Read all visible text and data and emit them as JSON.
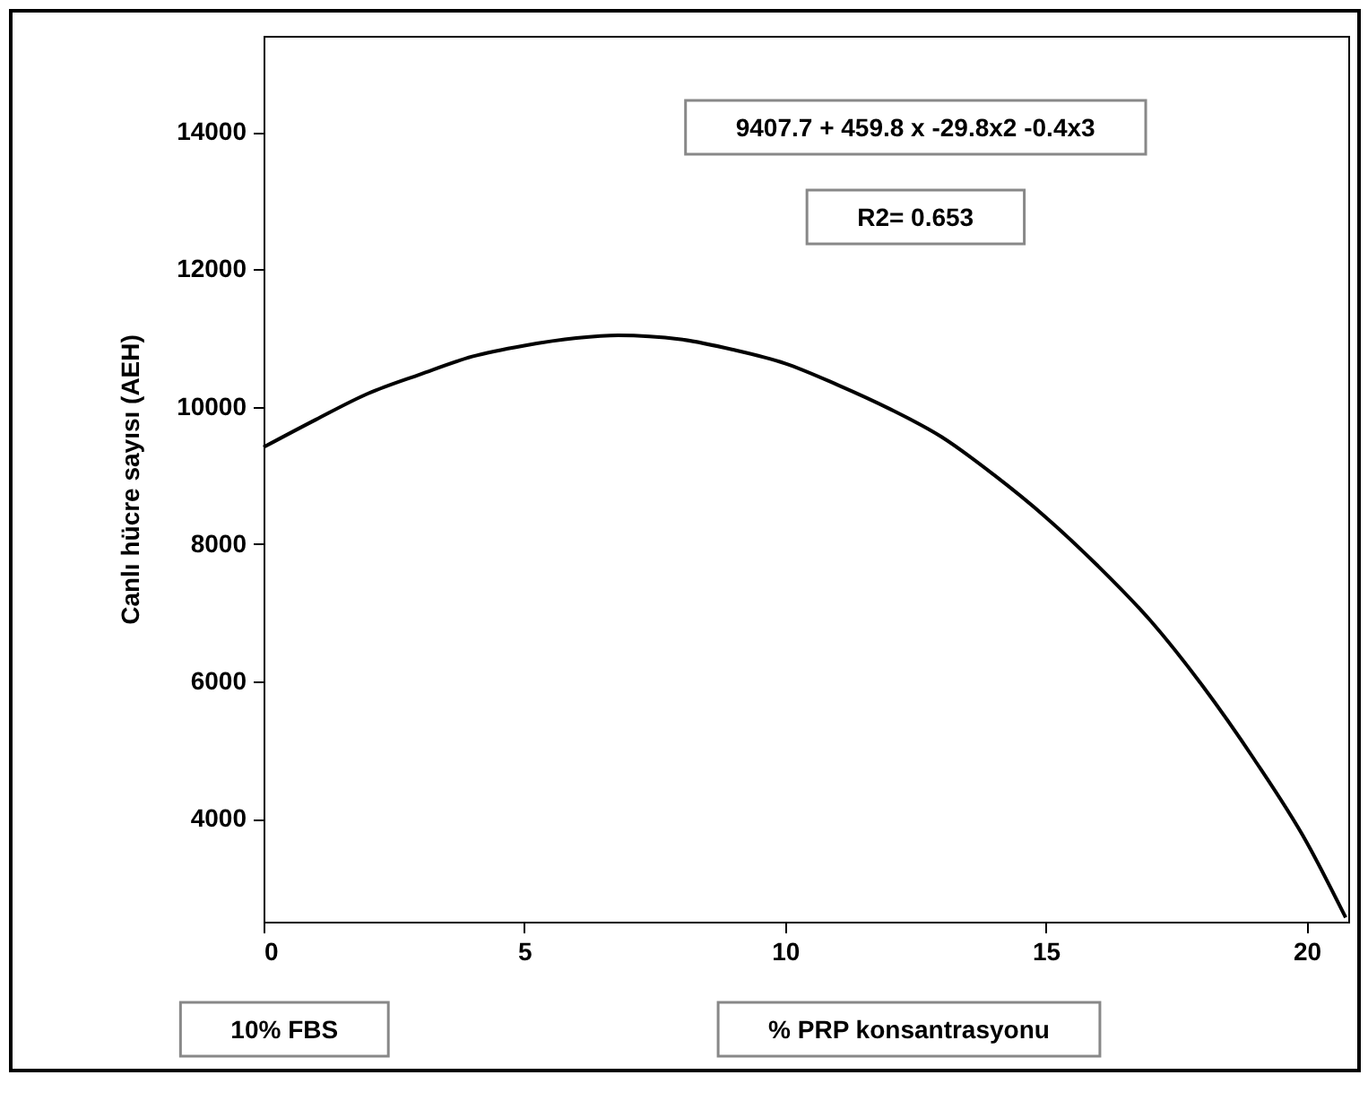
{
  "chart_data": {
    "type": "line",
    "xlabel": "% PRP konsantrasyonu",
    "ylabel": "Canlı hücre sayısı (AEH)",
    "annotations": [
      "9407.7 + 459.8 x -29.8x2 -0.4x3",
      "R2= 0.653",
      "10% FBS"
    ],
    "x": [
      0,
      1,
      2,
      3,
      4,
      5,
      6,
      6.8,
      8,
      9,
      10,
      11,
      12,
      13,
      14,
      15,
      16,
      17,
      18,
      19,
      20,
      20.75
    ],
    "series": [
      {
        "color": "#000000",
        "values": [
          9410,
          9810,
          10190,
          10470,
          10730,
          10890,
          11000,
          11040,
          10980,
          10830,
          10630,
          10320,
          9970,
          9560,
          9010,
          8390,
          7680,
          6890,
          5940,
          4860,
          3660,
          2560
        ]
      }
    ],
    "xlim": [
      0,
      20.8
    ],
    "xticks": [
      0,
      5,
      10,
      15,
      20
    ],
    "ylim": [
      2500,
      15400
    ],
    "yticks": [
      4000,
      6000,
      8000,
      10000,
      12000,
      14000
    ],
    "line_style": "solid"
  }
}
